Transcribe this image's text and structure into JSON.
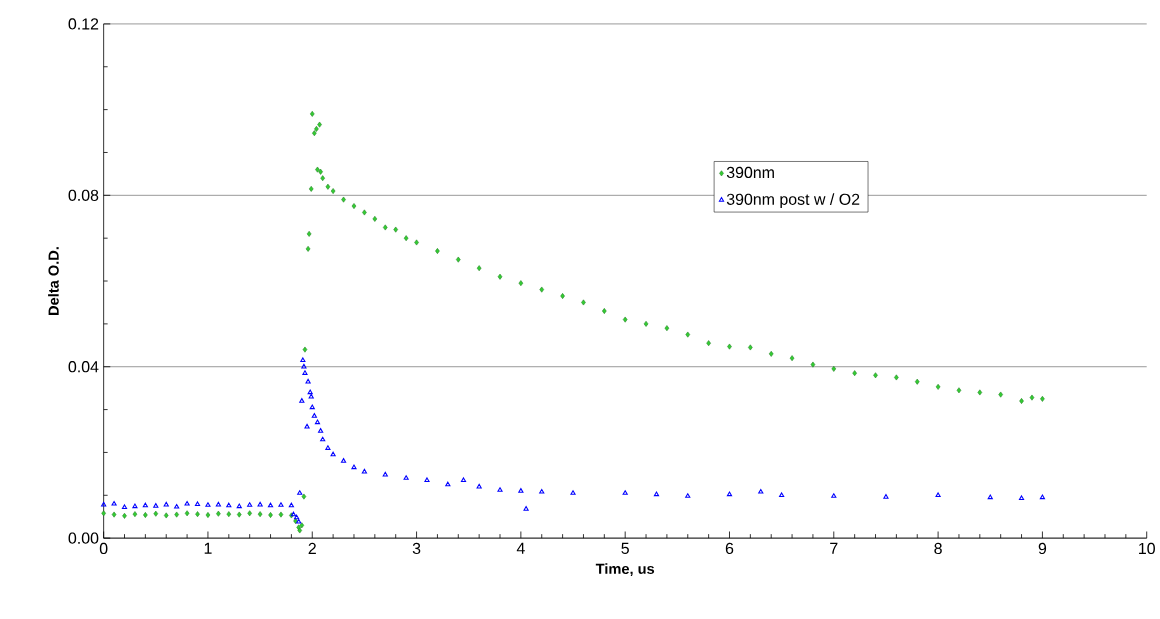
{
  "chart_data": {
    "type": "scatter",
    "xlabel": "Time, us",
    "ylabel": "Delta O.D.",
    "xlim": [
      0,
      10
    ],
    "xticks": [
      0,
      1,
      2,
      3,
      4,
      5,
      6,
      7,
      8,
      9,
      10
    ],
    "ylim": [
      0,
      0.12
    ],
    "yticks": [
      {
        "value": 0,
        "label": "0.00"
      },
      0.04,
      0.08,
      0.12
    ],
    "grid": "y",
    "legend": "top right",
    "series": [
      {
        "name": "390nm",
        "color": "#33cc33",
        "marker": "diamond",
        "x": [
          0,
          0.1,
          0.2,
          0.3,
          0.4,
          0.5,
          0.6,
          0.7,
          0.8,
          0.9,
          1.0,
          1.1,
          1.2,
          1.3,
          1.4,
          1.5,
          1.6,
          1.7,
          1.8,
          1.84,
          1.87,
          1.88,
          1.9,
          1.92,
          1.93,
          1.96,
          1.97,
          1.99,
          2.0,
          2.02,
          2.04,
          2.05,
          2.07,
          2.08,
          2.1,
          2.15,
          2.2,
          2.3,
          2.4,
          2.5,
          2.6,
          2.7,
          2.8,
          2.9,
          3.0,
          3.2,
          3.4,
          3.6,
          3.8,
          4.0,
          4.2,
          4.4,
          4.6,
          4.8,
          5.0,
          5.2,
          5.4,
          5.6,
          5.8,
          6.0,
          6.2,
          6.4,
          6.6,
          6.8,
          7.0,
          7.2,
          7.4,
          7.6,
          7.8,
          8.0,
          8.2,
          8.4,
          8.6,
          8.8,
          8.9,
          9.0
        ],
        "values": [
          0.0058,
          0.0055,
          0.0052,
          0.0056,
          0.0054,
          0.0057,
          0.0053,
          0.0055,
          0.0058,
          0.0056,
          0.0054,
          0.0057,
          0.0056,
          0.0055,
          0.0058,
          0.0056,
          0.0054,
          0.0055,
          0.0053,
          0.004,
          0.0025,
          0.0018,
          0.003,
          0.0097,
          0.044,
          0.0675,
          0.071,
          0.0815,
          0.099,
          0.0945,
          0.0955,
          0.086,
          0.0965,
          0.0855,
          0.084,
          0.082,
          0.081,
          0.079,
          0.0775,
          0.076,
          0.0745,
          0.0725,
          0.072,
          0.07,
          0.069,
          0.067,
          0.065,
          0.063,
          0.061,
          0.0595,
          0.058,
          0.0565,
          0.055,
          0.053,
          0.051,
          0.05,
          0.049,
          0.0475,
          0.0455,
          0.0447,
          0.0445,
          0.043,
          0.042,
          0.0405,
          0.0395,
          0.0385,
          0.038,
          0.0375,
          0.0365,
          0.0353,
          0.0345,
          0.034,
          0.0335,
          0.032,
          0.0328,
          0.0325
        ]
      },
      {
        "name": "390nm post w / O2",
        "color": "#0000ff",
        "marker": "triangle",
        "x": [
          0,
          0.1,
          0.2,
          0.3,
          0.4,
          0.5,
          0.6,
          0.7,
          0.8,
          0.9,
          1.0,
          1.1,
          1.2,
          1.3,
          1.4,
          1.5,
          1.6,
          1.7,
          1.8,
          1.82,
          1.85,
          1.87,
          1.88,
          1.9,
          1.91,
          1.92,
          1.93,
          1.95,
          1.96,
          1.98,
          1.99,
          2.0,
          2.02,
          2.05,
          2.08,
          2.1,
          2.15,
          2.2,
          2.3,
          2.4,
          2.5,
          2.7,
          2.9,
          3.1,
          3.3,
          3.45,
          3.6,
          3.8,
          4.0,
          4.05,
          4.2,
          4.5,
          5.0,
          5.3,
          5.6,
          6.0,
          6.3,
          6.5,
          7.0,
          7.5,
          8.0,
          8.5,
          8.8,
          9.0
        ],
        "values": [
          0.0078,
          0.008,
          0.0072,
          0.0074,
          0.0076,
          0.0075,
          0.0078,
          0.0073,
          0.008,
          0.0079,
          0.0077,
          0.0078,
          0.0076,
          0.0074,
          0.0077,
          0.0078,
          0.0076,
          0.0077,
          0.0076,
          0.0055,
          0.0048,
          0.0038,
          0.0105,
          0.032,
          0.0415,
          0.04,
          0.0385,
          0.026,
          0.0365,
          0.034,
          0.033,
          0.0305,
          0.0285,
          0.027,
          0.025,
          0.023,
          0.021,
          0.0195,
          0.018,
          0.0165,
          0.0155,
          0.0148,
          0.014,
          0.0135,
          0.0125,
          0.0135,
          0.012,
          0.0112,
          0.011,
          0.0068,
          0.0108,
          0.0105,
          0.0105,
          0.0102,
          0.0098,
          0.0102,
          0.0108,
          0.01,
          0.0098,
          0.0096,
          0.01,
          0.0095,
          0.0093,
          0.0095
        ]
      }
    ]
  }
}
